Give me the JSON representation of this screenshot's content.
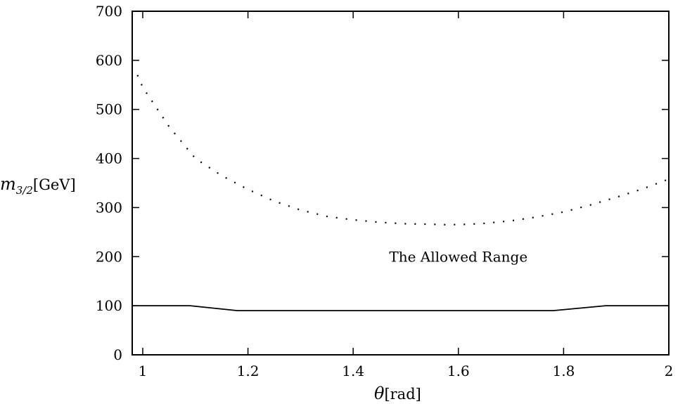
{
  "chart_data": {
    "type": "line",
    "title": "",
    "xlabel_symbol": "θ",
    "xlabel_unit": "[rad]",
    "ylabel_symbol": "m",
    "ylabel_subscript": "3/2",
    "ylabel_unit": "[GeV]",
    "xlim": [
      0.98,
      2.0
    ],
    "ylim": [
      0,
      700
    ],
    "x_ticks": [
      1,
      1.2,
      1.4,
      1.6,
      1.8,
      2
    ],
    "x_tick_labels": [
      "1",
      "1.2",
      "1.4",
      "1.6",
      "1.8",
      "2"
    ],
    "y_ticks": [
      0,
      100,
      200,
      300,
      400,
      500,
      600,
      700
    ],
    "y_tick_labels": [
      "0",
      "100",
      "200",
      "300",
      "400",
      "500",
      "600",
      "700"
    ],
    "grid": false,
    "annotation": {
      "text": "The Allowed Range",
      "x": 1.6,
      "y": 200
    },
    "series": [
      {
        "style": "dotted",
        "x": [
          0.99,
          1.0,
          1.05,
          1.1,
          1.15,
          1.2,
          1.25,
          1.3,
          1.35,
          1.4,
          1.45,
          1.5,
          1.55,
          1.58,
          1.62,
          1.65,
          1.7,
          1.75,
          1.8,
          1.85,
          1.9,
          1.95,
          2.0
        ],
        "y": [
          570,
          545,
          465,
          400,
          365,
          337,
          313,
          295,
          282,
          275,
          270,
          267,
          266,
          265,
          266,
          268,
          273,
          281,
          291,
          305,
          321,
          338,
          358
        ]
      },
      {
        "style": "solid",
        "x": [
          0.98,
          1.09,
          1.18,
          1.78,
          1.88,
          2.0
        ],
        "y": [
          100,
          100,
          90,
          90,
          100,
          100
        ]
      }
    ]
  }
}
